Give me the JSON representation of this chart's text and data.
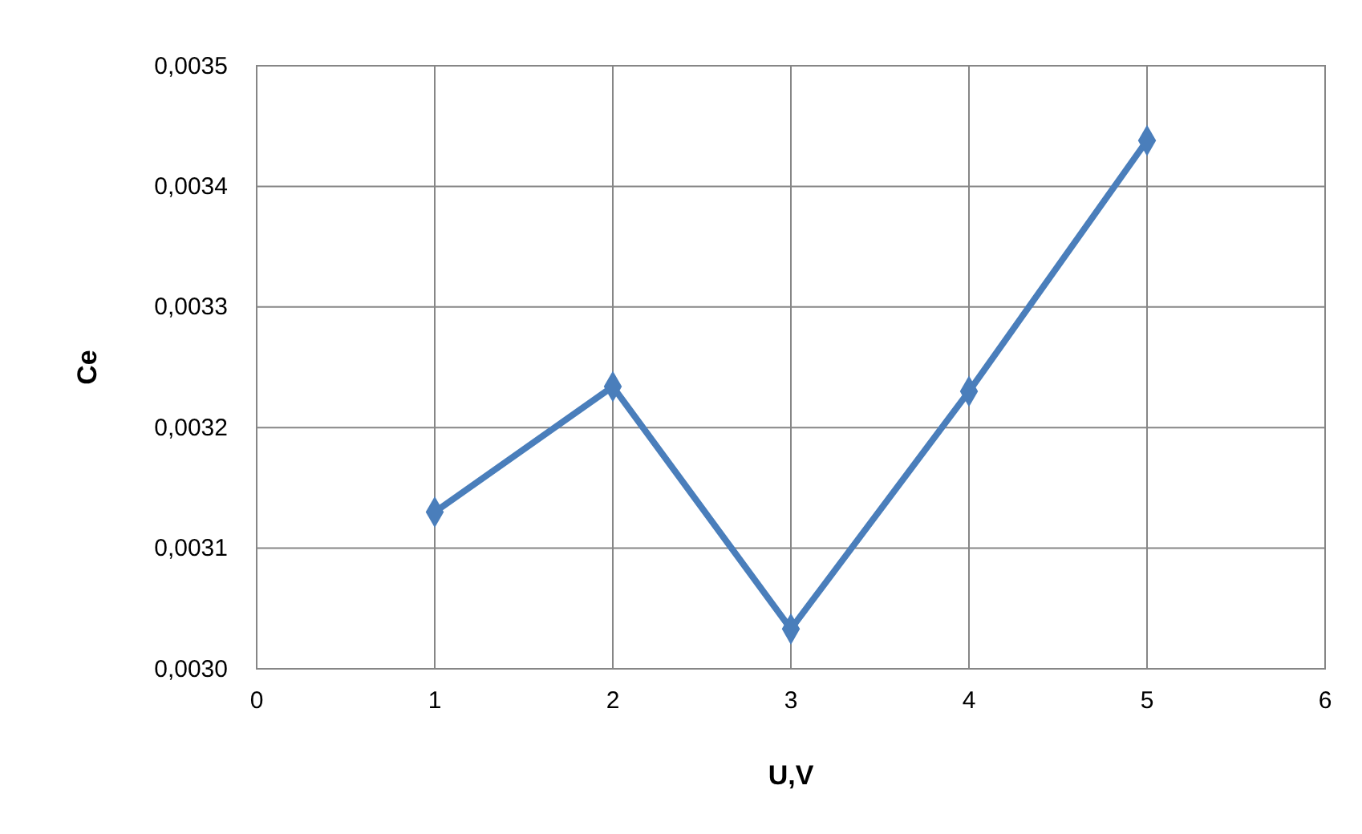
{
  "chart_data": {
    "type": "line",
    "xlabel": "U,V",
    "ylabel": "Ce",
    "x": [
      1,
      2,
      3,
      4,
      5
    ],
    "series": [
      {
        "color": "#4a7ebb",
        "values": [
          0.00313,
          0.003234,
          0.003033,
          0.00323,
          0.003438
        ]
      }
    ],
    "xlim": [
      0,
      6
    ],
    "xticks": [
      0,
      1,
      2,
      3,
      4,
      5,
      6
    ],
    "ylim": [
      0.003,
      0.0035
    ],
    "yticks": [
      {
        "value": 0.003,
        "label": "0,0030"
      },
      {
        "value": 0.0031,
        "label": "0,0031"
      },
      {
        "value": 0.0032,
        "label": "0,0032"
      },
      {
        "value": 0.0033,
        "label": "0,0033"
      },
      {
        "value": 0.0034,
        "label": "0,0034"
      },
      {
        "value": 0.0035,
        "label": "0,0035"
      }
    ],
    "grid": true,
    "marker": "diamond",
    "line_style": "solid"
  }
}
